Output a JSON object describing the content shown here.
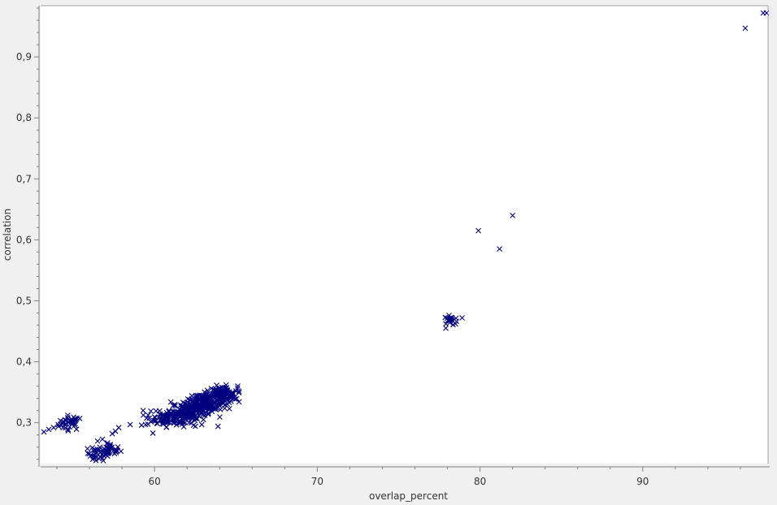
{
  "chart_data": {
    "type": "scatter",
    "title": "",
    "xlabel": "overlap_percent",
    "ylabel": "correlation",
    "xlim": [
      53,
      97.7
    ],
    "ylim": [
      0.233,
      0.984
    ],
    "x_ticks": [
      60,
      70,
      80,
      90
    ],
    "x_tick_labels": [
      "60",
      "70",
      "80",
      "90"
    ],
    "y_ticks": [
      0.3,
      0.4,
      0.5,
      0.6,
      0.7,
      0.8,
      0.9
    ],
    "y_tick_labels": [
      "0,3",
      "0,4",
      "0,5",
      "0,6",
      "0,7",
      "0,8",
      "0,9"
    ],
    "grid": false,
    "legend": "none",
    "marker": "x",
    "colors": {
      "marker": "#00007f",
      "plot_bg": "#ffffff",
      "frame": "#808080",
      "window_bg": "#f0f0f0"
    },
    "clusters": [
      {
        "center": [
          54.8,
          0.3
        ],
        "spread": [
          0.35,
          0.006
        ],
        "count": 35
      },
      {
        "center": [
          56.6,
          0.25
        ],
        "spread": [
          0.35,
          0.006
        ],
        "count": 35
      },
      {
        "center": [
          57.3,
          0.256
        ],
        "spread": [
          0.3,
          0.005
        ],
        "count": 25
      },
      {
        "center": [
          60.3,
          0.306
        ],
        "spread": [
          0.45,
          0.006
        ],
        "count": 35
      },
      {
        "center": [
          61.3,
          0.31
        ],
        "spread": [
          0.55,
          0.008
        ],
        "count": 80
      },
      {
        "center": [
          62.1,
          0.318
        ],
        "spread": [
          0.55,
          0.008
        ],
        "count": 90
      },
      {
        "center": [
          62.8,
          0.327
        ],
        "spread": [
          0.55,
          0.008
        ],
        "count": 110
      },
      {
        "center": [
          63.5,
          0.336
        ],
        "spread": [
          0.55,
          0.008
        ],
        "count": 110
      },
      {
        "center": [
          64.2,
          0.346
        ],
        "spread": [
          0.45,
          0.007
        ],
        "count": 80
      },
      {
        "center": [
          78.2,
          0.468
        ],
        "spread": [
          0.2,
          0.004
        ],
        "count": 20
      }
    ],
    "points": [
      {
        "x": 53.2,
        "y": 0.285
      },
      {
        "x": 53.5,
        "y": 0.289
      },
      {
        "x": 53.8,
        "y": 0.292
      },
      {
        "x": 54.1,
        "y": 0.294
      },
      {
        "x": 55.4,
        "y": 0.307
      },
      {
        "x": 55.1,
        "y": 0.306
      },
      {
        "x": 56.2,
        "y": 0.24
      },
      {
        "x": 56.4,
        "y": 0.238
      },
      {
        "x": 56.8,
        "y": 0.242
      },
      {
        "x": 56.5,
        "y": 0.27
      },
      {
        "x": 56.8,
        "y": 0.273
      },
      {
        "x": 57.6,
        "y": 0.286
      },
      {
        "x": 57.8,
        "y": 0.292
      },
      {
        "x": 57.4,
        "y": 0.282
      },
      {
        "x": 58.5,
        "y": 0.297
      },
      {
        "x": 59.2,
        "y": 0.296
      },
      {
        "x": 59.3,
        "y": 0.32
      },
      {
        "x": 59.9,
        "y": 0.283
      },
      {
        "x": 61.0,
        "y": 0.334
      },
      {
        "x": 62.4,
        "y": 0.296
      },
      {
        "x": 62.9,
        "y": 0.297
      },
      {
        "x": 63.9,
        "y": 0.294
      },
      {
        "x": 64.6,
        "y": 0.323
      },
      {
        "x": 65.0,
        "y": 0.352
      },
      {
        "x": 65.1,
        "y": 0.357
      },
      {
        "x": 64.9,
        "y": 0.341
      },
      {
        "x": 64.4,
        "y": 0.362
      },
      {
        "x": 77.9,
        "y": 0.455
      },
      {
        "x": 77.9,
        "y": 0.462
      },
      {
        "x": 78.5,
        "y": 0.462
      },
      {
        "x": 78.9,
        "y": 0.472
      },
      {
        "x": 78.1,
        "y": 0.476
      },
      {
        "x": 79.9,
        "y": 0.615
      },
      {
        "x": 81.2,
        "y": 0.585
      },
      {
        "x": 82.0,
        "y": 0.64
      },
      {
        "x": 96.3,
        "y": 0.947
      },
      {
        "x": 97.4,
        "y": 0.972
      },
      {
        "x": 97.6,
        "y": 0.972
      }
    ]
  }
}
